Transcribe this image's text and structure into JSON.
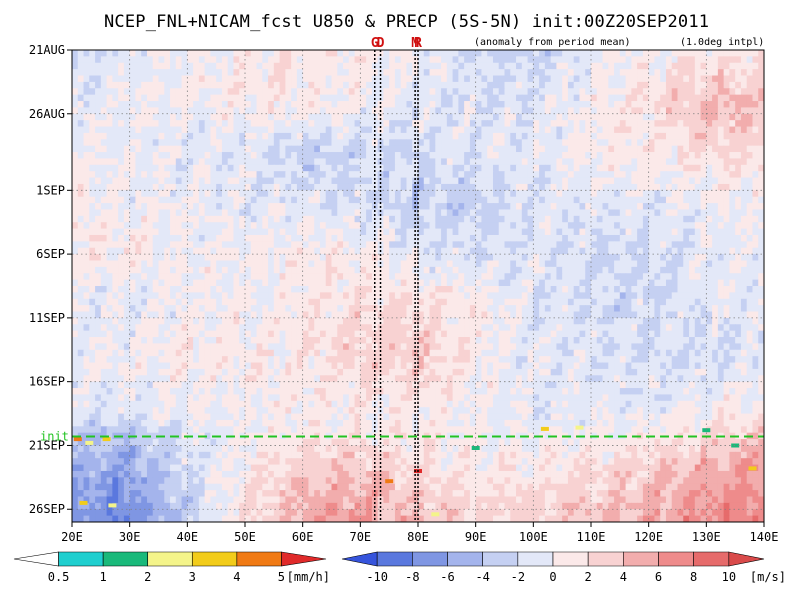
{
  "chart_data": {
    "type": "heatmap",
    "title": "NCEP_FNL+NICAM_fcst U850 & PRECP (5S-5N) init:00Z20SEP2011",
    "subtitle_left": "(anomaly from period mean)",
    "subtitle_right": "(1.0deg intpl)",
    "x_axis": {
      "range": [
        20,
        140
      ],
      "ticks": [
        20,
        30,
        40,
        50,
        60,
        70,
        80,
        90,
        100,
        110,
        120,
        130,
        140
      ],
      "tick_labels": [
        "20E",
        "30E",
        "40E",
        "50E",
        "60E",
        "70E",
        "80E",
        "90E",
        "100E",
        "110E",
        "120E",
        "130E",
        "140E"
      ]
    },
    "y_axis": {
      "range_days_from_21aug": [
        0,
        37
      ],
      "ticks": [
        0,
        5,
        11,
        16,
        21,
        26,
        31,
        36
      ],
      "tick_labels": [
        "21AUG",
        "26AUG",
        "1SEP",
        "6SEP",
        "11SEP",
        "16SEP",
        "21SEP",
        "26SEP"
      ],
      "direction": "time increases downward"
    },
    "grid": true,
    "init_line": {
      "label": "init",
      "date": "20SEP2011",
      "color": "#22c322"
    },
    "markers": [
      {
        "label": "G",
        "lon": 72.5
      },
      {
        "label": "D",
        "lon": 73.5
      },
      {
        "label": "M",
        "lon": 79.5
      },
      {
        "label": "R",
        "lon": 80.0
      }
    ],
    "field_u850_anomaly_ms": {
      "lon_columns": [
        20,
        30,
        40,
        50,
        60,
        70,
        80,
        90,
        100,
        110,
        120,
        130,
        140
      ],
      "rows": [
        {
          "day": 0,
          "values": [
            -2,
            -1,
            0,
            1,
            1,
            1,
            0,
            -2,
            -3,
            -1,
            0,
            1,
            1
          ]
        },
        {
          "day": 4,
          "values": [
            -1,
            0,
            0,
            1,
            1,
            0,
            -1,
            -2,
            -1,
            0,
            2,
            4,
            4
          ]
        },
        {
          "day": 8,
          "values": [
            0,
            0,
            -1,
            -1,
            -3,
            -2,
            -2,
            -1,
            -1,
            1,
            1,
            2,
            2
          ]
        },
        {
          "day": 12,
          "values": [
            1,
            0,
            0,
            -1,
            -1,
            -2,
            -3,
            -3,
            -1,
            -1,
            -1,
            0,
            0
          ]
        },
        {
          "day": 16,
          "values": [
            1,
            1,
            0,
            0,
            1,
            1,
            -1,
            -2,
            -1,
            -2,
            -2,
            -1,
            0
          ]
        },
        {
          "day": 20,
          "values": [
            -1,
            -1,
            0,
            0,
            1,
            2,
            2,
            1,
            -1,
            -2,
            -2,
            -1,
            -1
          ]
        },
        {
          "day": 24,
          "values": [
            0,
            0,
            1,
            1,
            1,
            3,
            3,
            1,
            -1,
            -1,
            -2,
            -2,
            -1
          ]
        },
        {
          "day": 28,
          "values": [
            -1,
            -1,
            0,
            0,
            1,
            1,
            1,
            0,
            -1,
            -1,
            -1,
            0,
            1
          ]
        },
        {
          "day": 30,
          "values": [
            -3,
            -4,
            -1,
            0,
            1,
            1,
            1,
            0,
            0,
            0,
            1,
            2,
            3
          ]
        },
        {
          "day": 33,
          "values": [
            -5,
            -6,
            -2,
            1,
            3,
            4,
            2,
            1,
            1,
            2,
            3,
            5,
            6
          ]
        },
        {
          "day": 37,
          "values": [
            -7,
            -8,
            -3,
            2,
            5,
            6,
            4,
            3,
            3,
            4,
            5,
            7,
            8
          ]
        }
      ]
    },
    "precip_patches_mm_per_h": [
      {
        "lon": 21,
        "day": 30.5,
        "value": 4
      },
      {
        "lon": 23,
        "day": 30.8,
        "value": 2
      },
      {
        "lon": 26,
        "day": 30.5,
        "value": 3
      },
      {
        "lon": 22,
        "day": 35.5,
        "value": 3
      },
      {
        "lon": 27,
        "day": 35.7,
        "value": 2
      },
      {
        "lon": 75,
        "day": 33.8,
        "value": 4
      },
      {
        "lon": 80,
        "day": 33.0,
        "value": 5
      },
      {
        "lon": 83,
        "day": 36.4,
        "value": 2
      },
      {
        "lon": 90,
        "day": 31.2,
        "value": 1
      },
      {
        "lon": 102,
        "day": 29.7,
        "value": 3
      },
      {
        "lon": 108,
        "day": 29.6,
        "value": 2
      },
      {
        "lon": 135,
        "day": 31.0,
        "value": 1
      },
      {
        "lon": 138,
        "day": 32.8,
        "value": 3
      },
      {
        "lon": 130,
        "day": 29.8,
        "value": 1
      }
    ]
  },
  "precip_colorbar": {
    "unit": "[mm/h]",
    "tick_labels": [
      "0.5",
      "1",
      "2",
      "3",
      "4",
      "5"
    ],
    "colors": [
      "#ffffff",
      "#1fcfcf",
      "#19b97a",
      "#f4f48a",
      "#f2cc1a",
      "#f07a14",
      "#e02a2a"
    ]
  },
  "u850_colorbar": {
    "unit": "[m/s]",
    "tick_labels": [
      "-10",
      "-8",
      "-6",
      "-4",
      "-2",
      "0",
      "2",
      "4",
      "6",
      "8",
      "10"
    ],
    "colors": [
      "#3654dc",
      "#5a78de",
      "#7f96e3",
      "#a4b4ec",
      "#c5d0f2",
      "#e3e8f8",
      "#fbe9e9",
      "#f8d2d2",
      "#f2adad",
      "#ee8b8b",
      "#e66b6b",
      "#d94a4a"
    ]
  }
}
